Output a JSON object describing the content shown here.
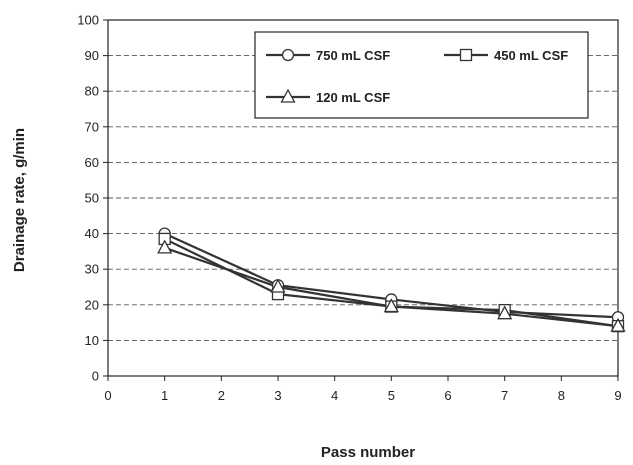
{
  "chart_data": {
    "type": "line",
    "title": "",
    "xlabel": "Pass number",
    "ylabel": "Drainage rate, g/min",
    "xlim": [
      0,
      9
    ],
    "ylim": [
      0,
      100
    ],
    "xticks": [
      0,
      1,
      2,
      3,
      4,
      5,
      6,
      7,
      8,
      9
    ],
    "yticks": [
      0,
      10,
      20,
      30,
      40,
      50,
      60,
      70,
      80,
      90,
      100
    ],
    "grid": "horizontal dashed",
    "legend_position": "top-right",
    "x": [
      1,
      3,
      5,
      7,
      9
    ],
    "series": [
      {
        "name": "750 mL CSF",
        "marker": "circle",
        "values": [
          40,
          25.5,
          21.5,
          18,
          16.5
        ]
      },
      {
        "name": "450 mL CSF",
        "marker": "square",
        "values": [
          38.5,
          23,
          19.5,
          18.5,
          14
        ]
      },
      {
        "name": "120 mL CSF",
        "marker": "triangle",
        "values": [
          36,
          25,
          19.5,
          17.5,
          14
        ]
      }
    ],
    "line_color": "#333333"
  }
}
